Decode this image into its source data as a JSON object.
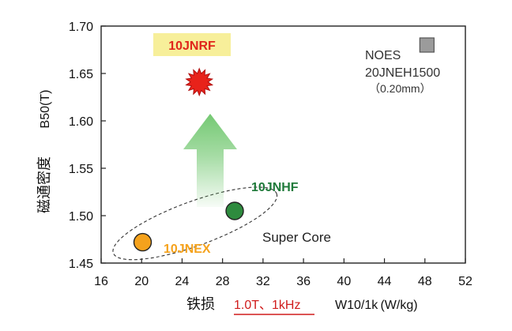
{
  "chart_data": {
    "type": "scatter",
    "xlabel_prefix": "铁损",
    "xlabel_condition": "1.0T、1kHz",
    "xlabel_unit": "W10/1k (W/kg)",
    "ylabel_main": "磁通密度",
    "ylabel_symbol": "B50(T)",
    "xlim": [
      16,
      52
    ],
    "ylim": [
      1.45,
      1.7
    ],
    "x_ticks": [
      "16",
      "20",
      "24",
      "28",
      "32",
      "36",
      "40",
      "44",
      "48",
      "52"
    ],
    "y_ticks": [
      "1.45",
      "1.50",
      "1.55",
      "1.60",
      "1.65",
      "1.70"
    ],
    "grid": false,
    "points": [
      {
        "label": "10JNEX",
        "x": 20.1,
        "y": 1.472,
        "color": "#f5a21c",
        "marker": "circle",
        "label_color": "#f5a21c"
      },
      {
        "label": "10JNHF",
        "x": 29.2,
        "y": 1.505,
        "color": "#2e8b3e",
        "marker": "circle",
        "label_color": "#1f7a3a"
      },
      {
        "label": "10JNRF",
        "x": 25.7,
        "y": 1.641,
        "color": "#e8221a",
        "marker": "star",
        "label_color": "#e0261c",
        "label_bg": "#f7ef9a"
      },
      {
        "label": "NOES",
        "x": 48.2,
        "y": 1.68,
        "color": "#9b9b9b",
        "marker": "square",
        "label_color": "#333333"
      }
    ],
    "annotations": {
      "noes_line1": "NOES",
      "noes_line2": "20JNEH1500",
      "noes_line3": "（0.20mm）",
      "group_label": "Super Core"
    },
    "colors": {
      "arrow": "#5cbf5a",
      "condition_underline": "#d01c1c",
      "axis": "#222222"
    }
  }
}
